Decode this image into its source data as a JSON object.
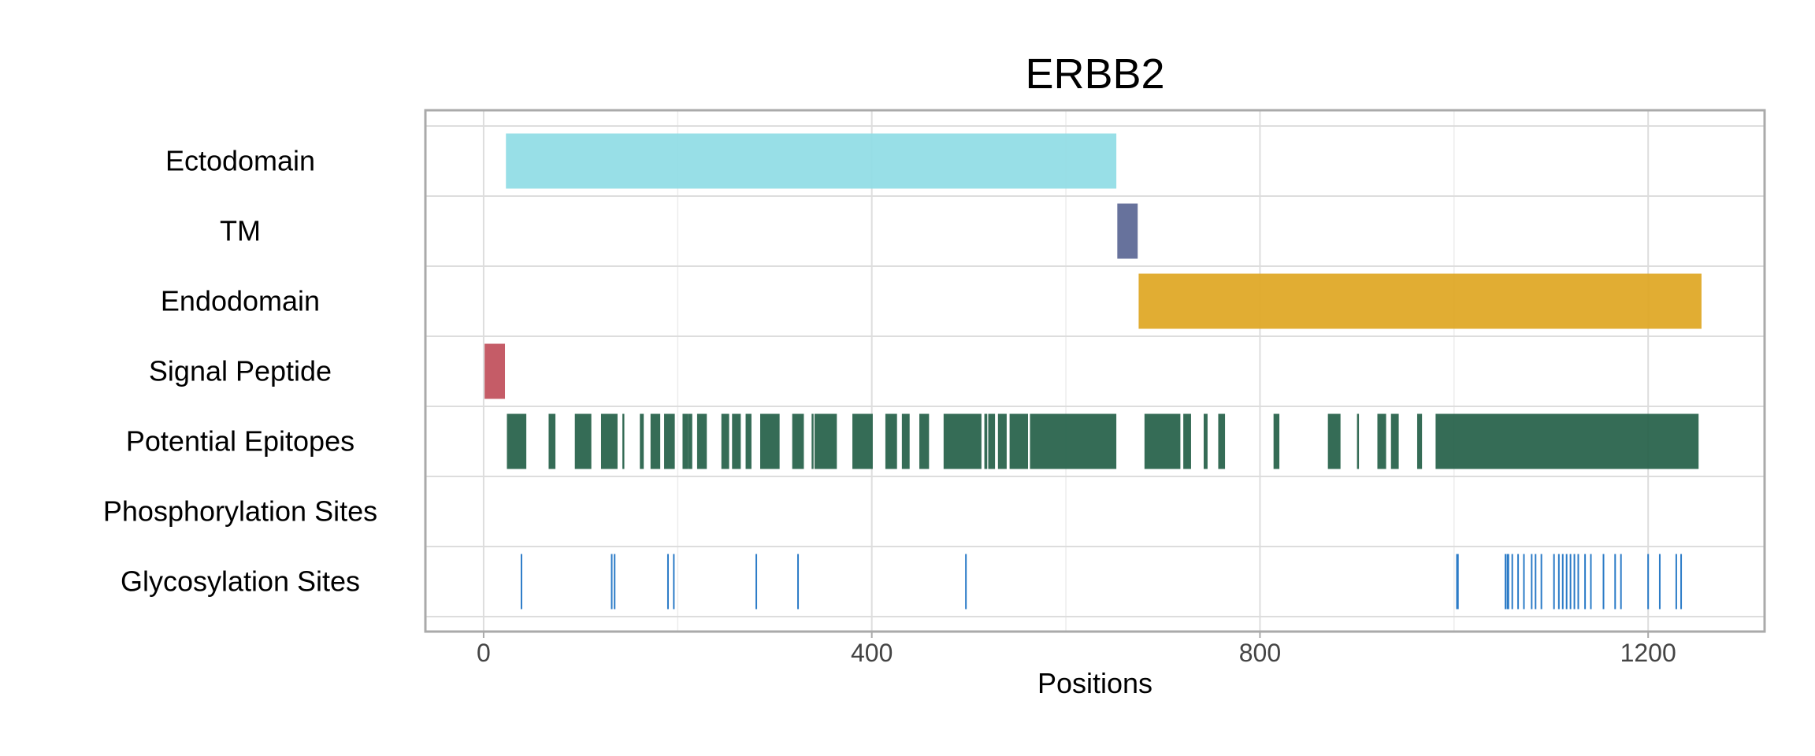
{
  "chart_data": {
    "type": "bar",
    "title": "ERBB2",
    "xlabel": "Positions",
    "ylabel": "",
    "xlim": [
      -60,
      1320
    ],
    "x_ticks": [
      0,
      400,
      800,
      1200
    ],
    "tick_labels": [
      "0",
      "400",
      "800",
      "1200"
    ],
    "grid": true,
    "rows": [
      {
        "name": "Ectodomain",
        "color": "#8fdce5",
        "segments": [
          [
            23,
            652
          ]
        ]
      },
      {
        "name": "TM",
        "color": "#5a6694",
        "segments": [
          [
            653,
            674
          ]
        ]
      },
      {
        "name": "Endodomain",
        "color": "#dea622",
        "segments": [
          [
            675,
            1255
          ]
        ]
      },
      {
        "name": "Signal Peptide",
        "color": "#c04e5a",
        "segments": [
          [
            1,
            22
          ]
        ]
      },
      {
        "name": "Potential Epitopes",
        "color": "#245f48",
        "segments": [
          [
            24,
            44
          ],
          [
            67,
            74
          ],
          [
            94,
            111
          ],
          [
            121,
            138
          ],
          [
            143,
            145
          ],
          [
            161,
            165
          ],
          [
            172,
            182
          ],
          [
            186,
            197
          ],
          [
            205,
            211
          ],
          [
            211,
            215
          ],
          [
            220,
            230
          ],
          [
            245,
            253
          ],
          [
            256,
            265
          ],
          [
            270,
            276
          ],
          [
            285,
            305
          ],
          [
            318,
            330
          ],
          [
            338,
            340
          ],
          [
            341,
            364
          ],
          [
            380,
            401
          ],
          [
            414,
            426
          ],
          [
            431,
            439
          ],
          [
            449,
            459
          ],
          [
            474,
            513
          ],
          [
            516,
            519
          ],
          [
            520,
            527
          ],
          [
            530,
            539
          ],
          [
            542,
            561
          ],
          [
            563,
            652
          ],
          [
            681,
            718
          ],
          [
            721,
            729
          ],
          [
            742,
            746
          ],
          [
            757,
            764
          ],
          [
            814,
            820
          ],
          [
            870,
            883
          ],
          [
            900,
            902
          ],
          [
            921,
            930
          ],
          [
            935,
            943
          ],
          [
            962,
            967
          ],
          [
            981,
            1252
          ]
        ]
      },
      {
        "name": "Phosphorylation Sites",
        "color": "#2b7bc7",
        "segments": []
      },
      {
        "name": "Glycosylation Sites",
        "color": "#2b7bc7",
        "sites": [
          39,
          132,
          135,
          190,
          196,
          281,
          324,
          497,
          1003,
          1004,
          1053,
          1055,
          1056,
          1060,
          1066,
          1072,
          1080,
          1084,
          1090,
          1103,
          1108,
          1112,
          1116,
          1120,
          1124,
          1128,
          1135,
          1141,
          1154,
          1166,
          1172,
          1200,
          1212,
          1229,
          1234
        ]
      }
    ]
  }
}
